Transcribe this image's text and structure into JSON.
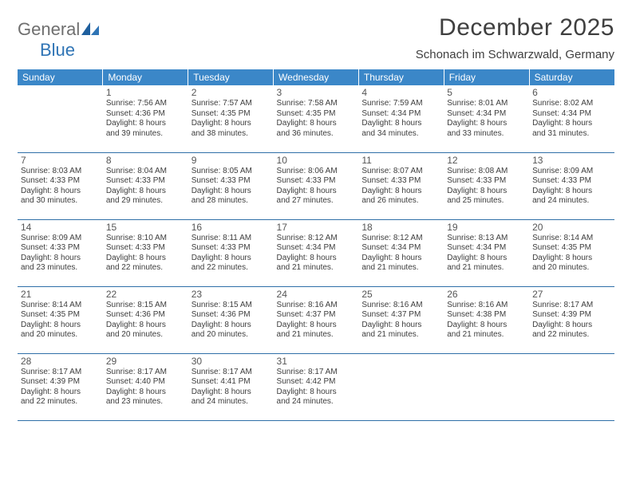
{
  "logo": {
    "part1": "General",
    "part2": "Blue"
  },
  "title": "December 2025",
  "location": "Schonach im Schwarzwald, Germany",
  "header_bg": "#3b87c8",
  "row_border": "#2f6fa8",
  "days": [
    "Sunday",
    "Monday",
    "Tuesday",
    "Wednesday",
    "Thursday",
    "Friday",
    "Saturday"
  ],
  "weeks": [
    [
      null,
      {
        "n": "1",
        "sr": "Sunrise: 7:56 AM",
        "ss": "Sunset: 4:36 PM",
        "d1": "Daylight: 8 hours",
        "d2": "and 39 minutes."
      },
      {
        "n": "2",
        "sr": "Sunrise: 7:57 AM",
        "ss": "Sunset: 4:35 PM",
        "d1": "Daylight: 8 hours",
        "d2": "and 38 minutes."
      },
      {
        "n": "3",
        "sr": "Sunrise: 7:58 AM",
        "ss": "Sunset: 4:35 PM",
        "d1": "Daylight: 8 hours",
        "d2": "and 36 minutes."
      },
      {
        "n": "4",
        "sr": "Sunrise: 7:59 AM",
        "ss": "Sunset: 4:34 PM",
        "d1": "Daylight: 8 hours",
        "d2": "and 34 minutes."
      },
      {
        "n": "5",
        "sr": "Sunrise: 8:01 AM",
        "ss": "Sunset: 4:34 PM",
        "d1": "Daylight: 8 hours",
        "d2": "and 33 minutes."
      },
      {
        "n": "6",
        "sr": "Sunrise: 8:02 AM",
        "ss": "Sunset: 4:34 PM",
        "d1": "Daylight: 8 hours",
        "d2": "and 31 minutes."
      }
    ],
    [
      {
        "n": "7",
        "sr": "Sunrise: 8:03 AM",
        "ss": "Sunset: 4:33 PM",
        "d1": "Daylight: 8 hours",
        "d2": "and 30 minutes."
      },
      {
        "n": "8",
        "sr": "Sunrise: 8:04 AM",
        "ss": "Sunset: 4:33 PM",
        "d1": "Daylight: 8 hours",
        "d2": "and 29 minutes."
      },
      {
        "n": "9",
        "sr": "Sunrise: 8:05 AM",
        "ss": "Sunset: 4:33 PM",
        "d1": "Daylight: 8 hours",
        "d2": "and 28 minutes."
      },
      {
        "n": "10",
        "sr": "Sunrise: 8:06 AM",
        "ss": "Sunset: 4:33 PM",
        "d1": "Daylight: 8 hours",
        "d2": "and 27 minutes."
      },
      {
        "n": "11",
        "sr": "Sunrise: 8:07 AM",
        "ss": "Sunset: 4:33 PM",
        "d1": "Daylight: 8 hours",
        "d2": "and 26 minutes."
      },
      {
        "n": "12",
        "sr": "Sunrise: 8:08 AM",
        "ss": "Sunset: 4:33 PM",
        "d1": "Daylight: 8 hours",
        "d2": "and 25 minutes."
      },
      {
        "n": "13",
        "sr": "Sunrise: 8:09 AM",
        "ss": "Sunset: 4:33 PM",
        "d1": "Daylight: 8 hours",
        "d2": "and 24 minutes."
      }
    ],
    [
      {
        "n": "14",
        "sr": "Sunrise: 8:09 AM",
        "ss": "Sunset: 4:33 PM",
        "d1": "Daylight: 8 hours",
        "d2": "and 23 minutes."
      },
      {
        "n": "15",
        "sr": "Sunrise: 8:10 AM",
        "ss": "Sunset: 4:33 PM",
        "d1": "Daylight: 8 hours",
        "d2": "and 22 minutes."
      },
      {
        "n": "16",
        "sr": "Sunrise: 8:11 AM",
        "ss": "Sunset: 4:33 PM",
        "d1": "Daylight: 8 hours",
        "d2": "and 22 minutes."
      },
      {
        "n": "17",
        "sr": "Sunrise: 8:12 AM",
        "ss": "Sunset: 4:34 PM",
        "d1": "Daylight: 8 hours",
        "d2": "and 21 minutes."
      },
      {
        "n": "18",
        "sr": "Sunrise: 8:12 AM",
        "ss": "Sunset: 4:34 PM",
        "d1": "Daylight: 8 hours",
        "d2": "and 21 minutes."
      },
      {
        "n": "19",
        "sr": "Sunrise: 8:13 AM",
        "ss": "Sunset: 4:34 PM",
        "d1": "Daylight: 8 hours",
        "d2": "and 21 minutes."
      },
      {
        "n": "20",
        "sr": "Sunrise: 8:14 AM",
        "ss": "Sunset: 4:35 PM",
        "d1": "Daylight: 8 hours",
        "d2": "and 20 minutes."
      }
    ],
    [
      {
        "n": "21",
        "sr": "Sunrise: 8:14 AM",
        "ss": "Sunset: 4:35 PM",
        "d1": "Daylight: 8 hours",
        "d2": "and 20 minutes."
      },
      {
        "n": "22",
        "sr": "Sunrise: 8:15 AM",
        "ss": "Sunset: 4:36 PM",
        "d1": "Daylight: 8 hours",
        "d2": "and 20 minutes."
      },
      {
        "n": "23",
        "sr": "Sunrise: 8:15 AM",
        "ss": "Sunset: 4:36 PM",
        "d1": "Daylight: 8 hours",
        "d2": "and 20 minutes."
      },
      {
        "n": "24",
        "sr": "Sunrise: 8:16 AM",
        "ss": "Sunset: 4:37 PM",
        "d1": "Daylight: 8 hours",
        "d2": "and 21 minutes."
      },
      {
        "n": "25",
        "sr": "Sunrise: 8:16 AM",
        "ss": "Sunset: 4:37 PM",
        "d1": "Daylight: 8 hours",
        "d2": "and 21 minutes."
      },
      {
        "n": "26",
        "sr": "Sunrise: 8:16 AM",
        "ss": "Sunset: 4:38 PM",
        "d1": "Daylight: 8 hours",
        "d2": "and 21 minutes."
      },
      {
        "n": "27",
        "sr": "Sunrise: 8:17 AM",
        "ss": "Sunset: 4:39 PM",
        "d1": "Daylight: 8 hours",
        "d2": "and 22 minutes."
      }
    ],
    [
      {
        "n": "28",
        "sr": "Sunrise: 8:17 AM",
        "ss": "Sunset: 4:39 PM",
        "d1": "Daylight: 8 hours",
        "d2": "and 22 minutes."
      },
      {
        "n": "29",
        "sr": "Sunrise: 8:17 AM",
        "ss": "Sunset: 4:40 PM",
        "d1": "Daylight: 8 hours",
        "d2": "and 23 minutes."
      },
      {
        "n": "30",
        "sr": "Sunrise: 8:17 AM",
        "ss": "Sunset: 4:41 PM",
        "d1": "Daylight: 8 hours",
        "d2": "and 24 minutes."
      },
      {
        "n": "31",
        "sr": "Sunrise: 8:17 AM",
        "ss": "Sunset: 4:42 PM",
        "d1": "Daylight: 8 hours",
        "d2": "and 24 minutes."
      },
      null,
      null,
      null
    ]
  ]
}
